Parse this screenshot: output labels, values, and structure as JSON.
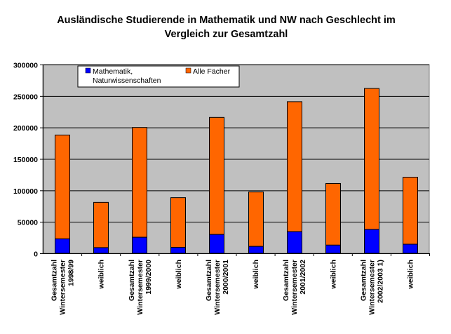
{
  "title": {
    "line1": "Ausländische Studierende in Mathematik und NW nach Geschlecht im",
    "line2": "Vergleich zur Gesamtzahl"
  },
  "chart_data": {
    "type": "bar",
    "stacked": true,
    "title": "Ausländische Studierende in Mathematik und NW nach Geschlecht im Vergleich zur Gesamtzahl",
    "xlabel": "",
    "ylabel": "",
    "ylim": [
      0,
      300000
    ],
    "yticks": [
      0,
      50000,
      100000,
      150000,
      200000,
      250000,
      300000
    ],
    "ytick_labels": [
      "0",
      "50000",
      "100000",
      "150000",
      "200000",
      "250000",
      "300000"
    ],
    "grid": true,
    "legend_position": "top-left inside plot",
    "categories": [
      [
        "Gesamtzahl",
        "Wintersemester",
        "1998/99"
      ],
      [
        "weiblich"
      ],
      [
        "Gesamtzahl",
        "Wintersemester",
        "1999/2000"
      ],
      [
        "weiblich"
      ],
      [
        "Gesamtzahl",
        "Wintersemester",
        "2000/2001"
      ],
      [
        "weiblich"
      ],
      [
        "Gesamtzahl",
        "Wintersemester",
        "2001/2002"
      ],
      [
        "weiblich"
      ],
      [
        "Gesamtzahl",
        "Wintersemester",
        "2002/2003   1)"
      ],
      [
        "weiblich"
      ]
    ],
    "series": [
      {
        "name": "Mathematik, Naturwissenschaften",
        "legend_lines": [
          "Mathematik,",
          "Naturwissenschaften"
        ],
        "color": "#0000ff",
        "values": [
          23000,
          9000,
          25500,
          9500,
          30000,
          11000,
          34500,
          13000,
          38000,
          14500
        ]
      },
      {
        "name": "Alle Fächer",
        "legend_lines": [
          "Alle Fächer"
        ],
        "color": "#ff6600",
        "values": [
          188000,
          81000,
          200000,
          88500,
          216000,
          97500,
          241000,
          111000,
          262000,
          121000
        ],
        "total": true
      }
    ]
  },
  "colors": {
    "plot_background": "#c0c0c0",
    "grid": "#000000",
    "bar_outline": "#000000"
  }
}
